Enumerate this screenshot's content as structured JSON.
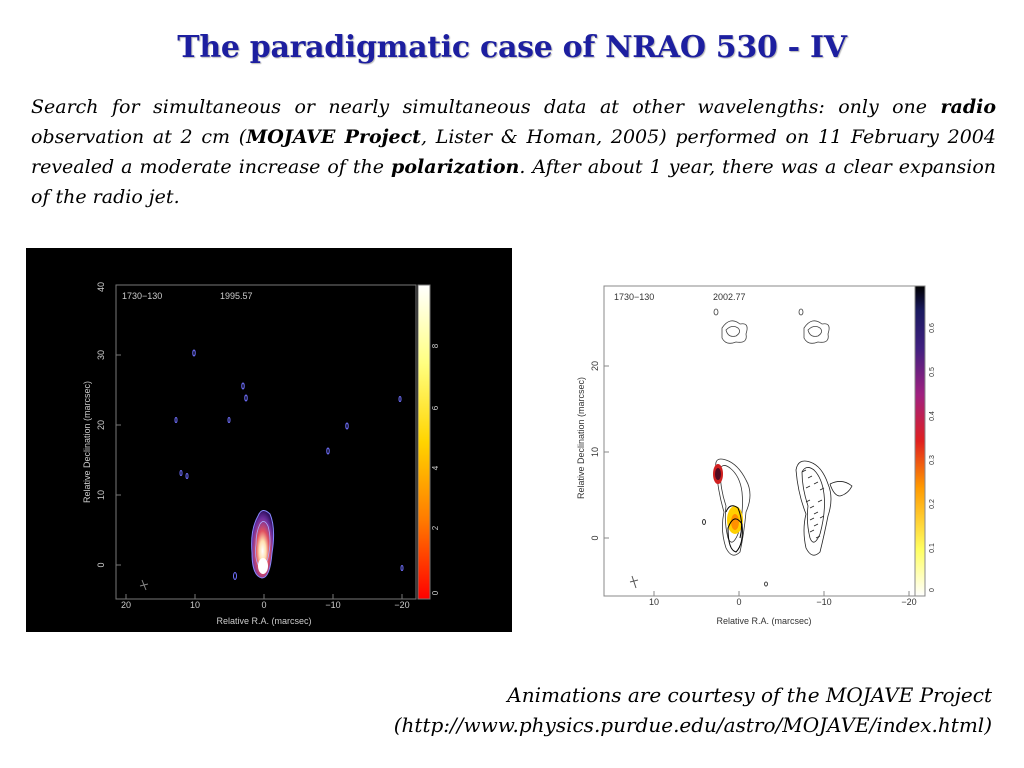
{
  "title": "The paradigmatic case of NRAO 530 - IV",
  "paragraph": {
    "p1": "Search for simultaneous or nearly simultaneous data at other wavelengths: only one ",
    "b1": "radio",
    "p2": " observation at 2 cm (",
    "b2": "MOJAVE Project",
    "p3": ", Lister & Homan, 2005) performed on 11 February 2004 revealed a moderate increase of the ",
    "b3": "polarization",
    "p4": ". After about 1 year, there was a clear expansion of the radio jet."
  },
  "left_map": {
    "source": "1730−130",
    "epoch": "1995.57",
    "ylabel": "Relative Declination (marcsec)",
    "xlabel": "Relative R.A. (marcsec)",
    "yticks": [
      "0",
      "10",
      "20",
      "30",
      "40"
    ],
    "xticks": [
      "20",
      "10",
      "0",
      "−10",
      "−20"
    ],
    "colorbar_ticks": [
      "0",
      "2",
      "4",
      "6",
      "8"
    ]
  },
  "right_map": {
    "source": "1730−130",
    "epoch": "2002.77",
    "ylabel": "Relative Declination (marcsec)",
    "xlabel": "Relative R.A. (marcsec)",
    "yticks": [
      "0",
      "10",
      "20"
    ],
    "xticks": [
      "10",
      "0",
      "−10",
      "−20"
    ],
    "colorbar_ticks": [
      "0",
      "0.1",
      "0.2",
      "0.3",
      "0.4",
      "0.5",
      "0.6"
    ]
  },
  "credit": {
    "line1": "Animations are courtesy of the MOJAVE Project",
    "line2": "(http://www.physics.purdue.edu/astro/MOJAVE/index.html)"
  }
}
